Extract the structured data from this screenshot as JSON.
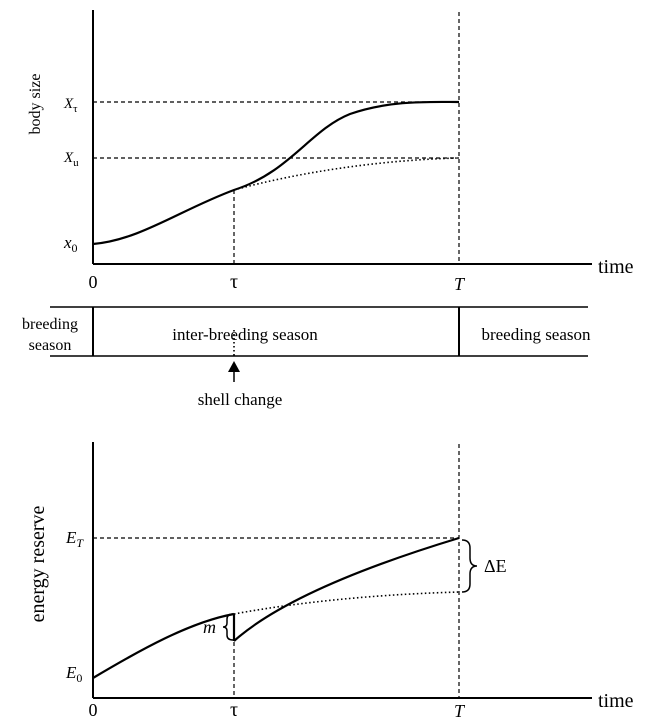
{
  "top": {
    "y_axis_label": "body size",
    "x_axis_label": "time",
    "y_labels": {
      "x_tau": "X",
      "x_tau_sub": "τ",
      "x_u": "X",
      "x_u_sub": "u",
      "x_0": "x",
      "x_0_sub": "0"
    },
    "x_labels": {
      "zero": "0",
      "tau": "τ",
      "T": "T"
    }
  },
  "seasons": {
    "left": [
      "breeding",
      "season"
    ],
    "middle": "inter-breeding season",
    "right": "breeding season",
    "event": "shell change"
  },
  "bottom": {
    "y_axis_label": "energy reserve",
    "x_axis_label": "time",
    "y_labels": {
      "E_T": "E",
      "E_T_sub": "T",
      "E_0": "E",
      "E_0_sub": "0"
    },
    "x_labels": {
      "zero": "0",
      "tau": "τ",
      "T": "T"
    },
    "m_label": "m",
    "delta_E_label": "ΔE"
  }
}
